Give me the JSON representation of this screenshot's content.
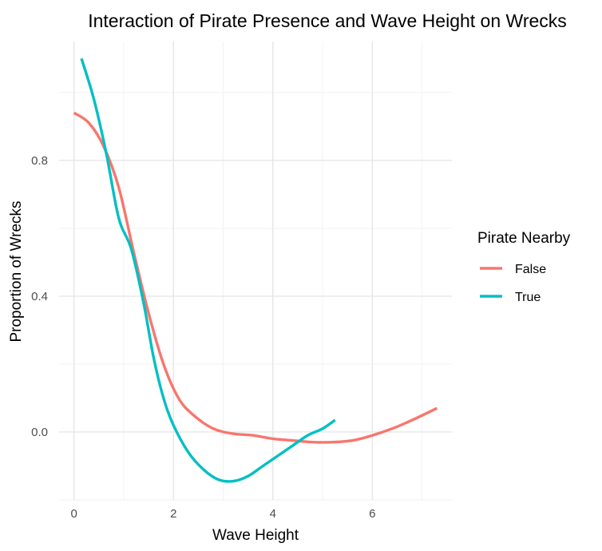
{
  "chart_data": {
    "type": "line",
    "title": "Interaction of Pirate Presence and Wave Height on Wrecks",
    "xlabel": "Wave Height",
    "ylabel": "Proportion of Wrecks",
    "xlim": [
      -0.3,
      7.6
    ],
    "ylim": [
      -0.2,
      1.15
    ],
    "x_ticks": [
      0,
      2,
      4,
      6
    ],
    "y_ticks": [
      0.0,
      0.4,
      0.8
    ],
    "x_tick_labels": [
      "0",
      "2",
      "4",
      "6"
    ],
    "y_tick_labels": [
      "0.0",
      "0.4",
      "0.8"
    ],
    "grid": true,
    "legend": {
      "title": "Pirate Nearby",
      "position": "right"
    },
    "series": [
      {
        "name": "False",
        "color": "#F8766D",
        "x": [
          0.0,
          0.3,
          0.6,
          0.9,
          1.2,
          1.5,
          1.8,
          2.1,
          2.4,
          2.8,
          3.2,
          3.6,
          4.0,
          4.4,
          4.8,
          5.2,
          5.6,
          6.0,
          6.4,
          6.8,
          7.3
        ],
        "y": [
          0.94,
          0.91,
          0.84,
          0.72,
          0.53,
          0.35,
          0.2,
          0.1,
          0.05,
          0.01,
          -0.005,
          -0.01,
          -0.02,
          -0.025,
          -0.03,
          -0.03,
          -0.025,
          -0.01,
          0.01,
          0.035,
          0.07
        ]
      },
      {
        "name": "True",
        "color": "#00BFC4",
        "x": [
          0.15,
          0.4,
          0.65,
          0.9,
          1.15,
          1.4,
          1.6,
          1.8,
          2.0,
          2.3,
          2.6,
          2.9,
          3.2,
          3.5,
          3.8,
          4.1,
          4.4,
          4.7,
          5.0,
          5.25
        ],
        "y": [
          1.1,
          0.98,
          0.82,
          0.63,
          0.54,
          0.38,
          0.22,
          0.1,
          0.02,
          -0.06,
          -0.11,
          -0.14,
          -0.145,
          -0.13,
          -0.1,
          -0.07,
          -0.04,
          -0.01,
          0.01,
          0.035
        ]
      }
    ]
  }
}
